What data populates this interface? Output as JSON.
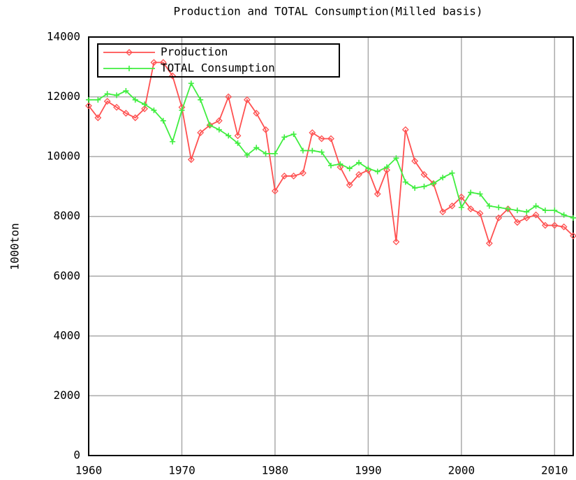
{
  "chart_data": {
    "type": "line",
    "title": "Production and TOTAL Consumption(Milled basis)",
    "y_label": "1000ton",
    "x": [
      1960,
      1961,
      1962,
      1963,
      1964,
      1965,
      1966,
      1967,
      1968,
      1969,
      1970,
      1971,
      1972,
      1973,
      1974,
      1975,
      1976,
      1977,
      1978,
      1979,
      1980,
      1981,
      1982,
      1983,
      1984,
      1985,
      1986,
      1987,
      1988,
      1989,
      1990,
      1991,
      1992,
      1993,
      1994,
      1995,
      1996,
      1997,
      1998,
      1999,
      2000,
      2001,
      2002,
      2003,
      2004,
      2005,
      2006,
      2007,
      2008,
      2009,
      2010,
      2011,
      2012
    ],
    "series": [
      {
        "name": "Production",
        "color": "#ff5050",
        "marker": "diamond",
        "values": [
          11700,
          11300,
          11850,
          11650,
          11450,
          11300,
          11600,
          13150,
          13150,
          12700,
          11650,
          9900,
          10800,
          11050,
          11200,
          12000,
          10700,
          11900,
          11450,
          10900,
          8850,
          9350,
          9350,
          9450,
          10800,
          10600,
          10600,
          9650,
          9050,
          9400,
          9550,
          8750,
          9550,
          7150,
          10900,
          9850,
          9400,
          9100,
          8150,
          8350,
          8650,
          8250,
          8100,
          7100,
          7950,
          8250,
          7800,
          7950,
          8050,
          7700,
          7700,
          7650,
          7350
        ]
      },
      {
        "name": "TOTAL Consumption",
        "color": "#40ee40",
        "marker": "plus",
        "values": [
          11900,
          11900,
          12100,
          12050,
          12200,
          11900,
          11750,
          11550,
          11200,
          10500,
          11550,
          12450,
          11900,
          11050,
          10900,
          10700,
          10450,
          10050,
          10300,
          10100,
          10100,
          10650,
          10750,
          10200,
          10200,
          10150,
          9700,
          9750,
          9600,
          9800,
          9600,
          9500,
          9650,
          9950,
          9150,
          8950,
          9000,
          9100,
          9300,
          9450,
          8300,
          8800,
          8750,
          8350,
          8300,
          8250,
          8200,
          8150,
          8350,
          8200,
          8200,
          8050,
          7950
        ]
      }
    ],
    "xlim": [
      1960,
      2012
    ],
    "xticks": [
      1960,
      1970,
      1980,
      1990,
      2000,
      2010
    ],
    "ylim": [
      0,
      14000
    ],
    "yticks": [
      0,
      2000,
      4000,
      6000,
      8000,
      10000,
      12000,
      14000
    ],
    "grid": true,
    "legend": "top-left"
  }
}
